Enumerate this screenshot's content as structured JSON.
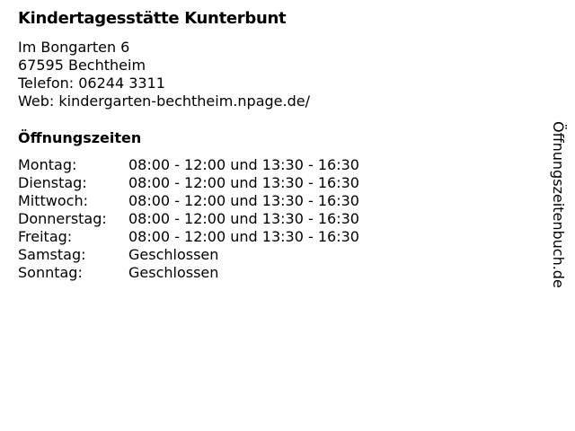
{
  "title": "Kindertagesstätte Kunterbunt",
  "address": {
    "street": "Im Bongarten 6",
    "city": "67595 Bechtheim",
    "phone": "Telefon: 06244 3311",
    "web": "Web: kindergarten-bechtheim.npage.de/"
  },
  "hours_heading": "Öffnungszeiten",
  "hours": [
    {
      "day": "Montag:",
      "time": "08:00 - 12:00 und 13:30 - 16:30"
    },
    {
      "day": "Dienstag:",
      "time": "08:00 - 12:00 und 13:30 - 16:30"
    },
    {
      "day": "Mittwoch:",
      "time": "08:00 - 12:00 und 13:30 - 16:30"
    },
    {
      "day": "Donnerstag:",
      "time": "08:00 - 12:00 und 13:30 - 16:30"
    },
    {
      "day": "Freitag:",
      "time": "08:00 - 12:00 und 13:30 - 16:30"
    },
    {
      "day": "Samstag:",
      "time": "Geschlossen"
    },
    {
      "day": "Sonntag:",
      "time": "Geschlossen"
    }
  ],
  "side_label": "Öffnungszeitenbuch.de"
}
